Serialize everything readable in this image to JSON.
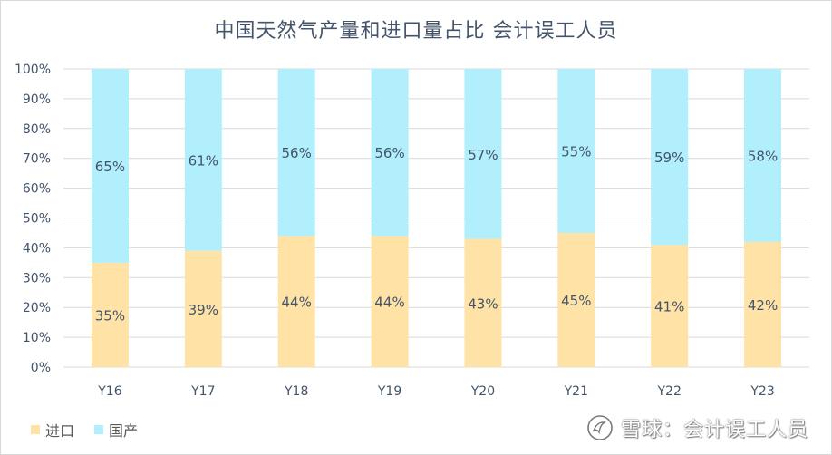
{
  "chart_data": {
    "type": "bar",
    "stacked": true,
    "title": "中国天然气产量和进口量占比 会计误工人员",
    "categories": [
      "Y16",
      "Y17",
      "Y18",
      "Y19",
      "Y20",
      "Y21",
      "Y22",
      "Y23"
    ],
    "series": [
      {
        "name": "进口",
        "values": [
          35,
          39,
          44,
          44,
          43,
          45,
          41,
          42
        ],
        "labels": [
          "35%",
          "39%",
          "44%",
          "44%",
          "43%",
          "45%",
          "41%",
          "42%"
        ],
        "color": "#ffe2a6"
      },
      {
        "name": "国产",
        "values": [
          65,
          61,
          56,
          56,
          57,
          55,
          59,
          58
        ],
        "labels": [
          "65%",
          "61%",
          "56%",
          "56%",
          "57%",
          "55%",
          "59%",
          "58%"
        ],
        "color": "#b0effb"
      }
    ],
    "yticks": [
      "0%",
      "10%",
      "20%",
      "30%",
      "40%",
      "50%",
      "60%",
      "70%",
      "80%",
      "90%",
      "100%"
    ],
    "ylim": [
      0,
      100
    ],
    "grid": true,
    "legend_position": "bottom-left",
    "colors": {
      "title": "#44546a",
      "axis_text": "#44546a",
      "data_label": "#44546a",
      "grid": "#d9d9d9"
    }
  },
  "watermark": {
    "icon": "snowball-icon",
    "text": "雪球：会计误工人员"
  }
}
